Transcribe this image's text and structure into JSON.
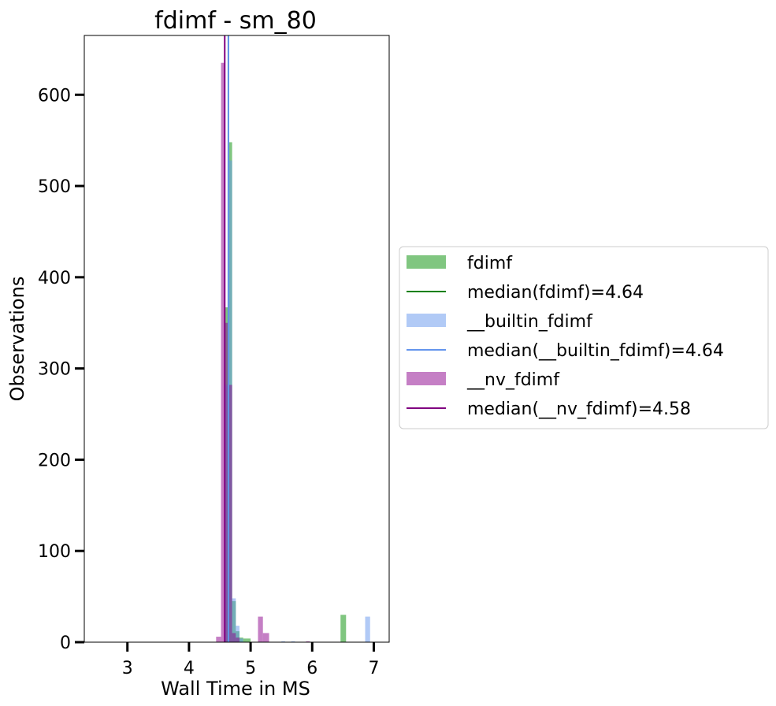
{
  "chart_data": {
    "type": "histogram",
    "title": "fdimf - sm_80",
    "xlabel": "Wall Time in MS",
    "ylabel": "Observations",
    "xlim": [
      2.3,
      7.25
    ],
    "ylim": [
      0,
      665
    ],
    "xticks": [
      3,
      4,
      5,
      6,
      7
    ],
    "yticks": [
      0,
      100,
      200,
      300,
      400,
      500,
      600
    ],
    "grid": false,
    "legend_position": "center-right-outside",
    "series": [
      {
        "name": "fdimf",
        "kind": "bars",
        "color": "#2ca02c",
        "opacity": 0.6,
        "bins": [
          {
            "x0": 4.58,
            "x1": 4.64,
            "y": 367
          },
          {
            "x0": 4.64,
            "x1": 4.7,
            "y": 548
          },
          {
            "x0": 4.7,
            "x1": 4.76,
            "y": 45
          },
          {
            "x0": 4.76,
            "x1": 4.82,
            "y": 12
          },
          {
            "x0": 4.82,
            "x1": 4.88,
            "y": 5
          },
          {
            "x0": 4.88,
            "x1": 4.94,
            "y": 4
          },
          {
            "x0": 4.94,
            "x1": 5.0,
            "y": 4
          },
          {
            "x0": 6.46,
            "x1": 6.55,
            "y": 30
          }
        ]
      },
      {
        "name": "median(fdimf)=4.64",
        "kind": "vline",
        "color": "#008000",
        "x": 4.64
      },
      {
        "name": "__builtin_fdimf",
        "kind": "bars",
        "color": "#6495ed",
        "opacity": 0.5,
        "bins": [
          {
            "x0": 4.58,
            "x1": 4.64,
            "y": 282
          },
          {
            "x0": 4.64,
            "x1": 4.7,
            "y": 528
          },
          {
            "x0": 4.7,
            "x1": 4.76,
            "y": 48
          },
          {
            "x0": 4.76,
            "x1": 4.82,
            "y": 18
          },
          {
            "x0": 4.82,
            "x1": 4.88,
            "y": 4
          },
          {
            "x0": 5.5,
            "x1": 5.56,
            "y": 1
          },
          {
            "x0": 5.66,
            "x1": 5.72,
            "y": 1
          },
          {
            "x0": 6.86,
            "x1": 6.94,
            "y": 28
          }
        ]
      },
      {
        "name": "median(__builtin_fdimf)=4.64",
        "kind": "vline",
        "color": "#6495ed",
        "x": 4.64
      },
      {
        "name": "__nv_fdimf",
        "kind": "bars",
        "color": "#8b008b",
        "opacity": 0.5,
        "bins": [
          {
            "x0": 4.44,
            "x1": 4.52,
            "y": 6
          },
          {
            "x0": 4.52,
            "x1": 4.58,
            "y": 635
          },
          {
            "x0": 4.58,
            "x1": 4.64,
            "y": 350
          },
          {
            "x0": 4.64,
            "x1": 4.7,
            "y": 282
          },
          {
            "x0": 4.7,
            "x1": 4.76,
            "y": 10
          },
          {
            "x0": 4.76,
            "x1": 4.82,
            "y": 5
          },
          {
            "x0": 5.12,
            "x1": 5.2,
            "y": 28
          },
          {
            "x0": 5.2,
            "x1": 5.3,
            "y": 10
          },
          {
            "x0": 5.9,
            "x1": 5.96,
            "y": 1
          }
        ]
      },
      {
        "name": "median(__nv_fdimf)=4.58",
        "kind": "vline",
        "color": "#800080",
        "x": 4.58
      }
    ]
  }
}
